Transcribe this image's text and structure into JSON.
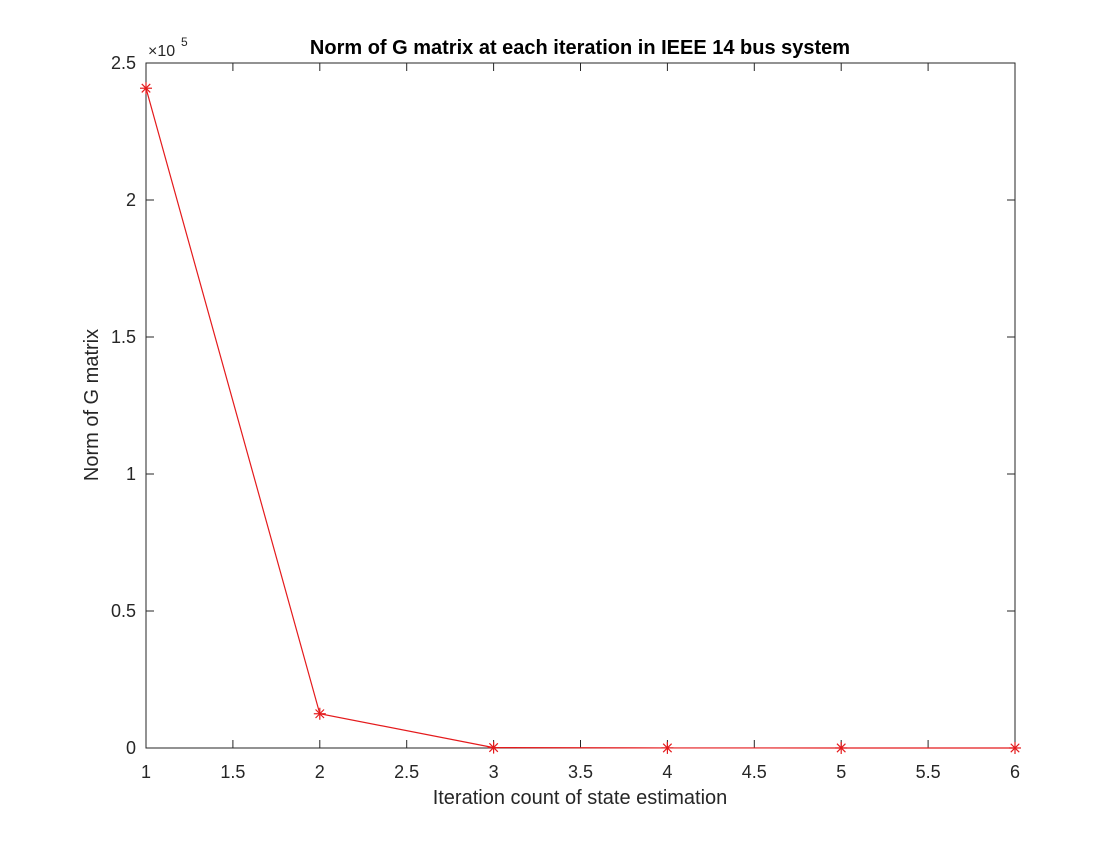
{
  "chart_data": {
    "type": "line",
    "title": "Norm of G matrix at each iteration in IEEE 14 bus system",
    "xlabel": "Iteration count of state estimation",
    "ylabel": "Norm of G matrix",
    "xlim": [
      1,
      6
    ],
    "ylim": [
      0,
      250000
    ],
    "x_ticks": [
      1,
      1.5,
      2,
      2.5,
      3,
      3.5,
      4,
      4.5,
      5,
      5.5,
      6
    ],
    "x_tick_labels": [
      "1",
      "1.5",
      "2",
      "2.5",
      "3",
      "3.5",
      "4",
      "4.5",
      "5",
      "5.5",
      "6"
    ],
    "y_ticks": [
      0,
      50000,
      100000,
      150000,
      200000,
      250000
    ],
    "y_tick_labels": [
      "0",
      "0.5",
      "1",
      "1.5",
      "2",
      "2.5"
    ],
    "y_exponent_label": "×10",
    "y_exponent": "5",
    "grid": false,
    "box": true,
    "series": [
      {
        "color": "#e41a1c",
        "marker": "asterisk",
        "x": [
          1,
          2,
          3,
          4,
          5,
          6
        ],
        "y": [
          240800,
          12500,
          150,
          30,
          10,
          5
        ]
      }
    ]
  }
}
